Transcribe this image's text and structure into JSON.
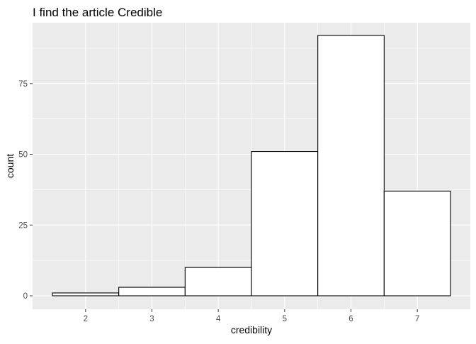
{
  "chart_data": {
    "type": "bar",
    "title": "I find the article Credible",
    "xlabel": "credibility",
    "ylabel": "count",
    "categories": [
      "2",
      "3",
      "4",
      "5",
      "6",
      "7"
    ],
    "x": [
      2,
      3,
      4,
      5,
      6,
      7
    ],
    "values": [
      1,
      3,
      10,
      51,
      92,
      37
    ],
    "xlim": [
      1.5,
      7.5
    ],
    "ylim": [
      0,
      92
    ],
    "yticks": [
      0,
      25,
      50,
      75
    ],
    "ytick_labels": [
      "0",
      "25",
      "50",
      "75"
    ],
    "grid": true,
    "legend": "none",
    "colors": {
      "panel": "#ebebeb",
      "grid_major": "#ffffff",
      "bar_fill": "#ffffff",
      "bar_stroke": "#000000",
      "tick_text": "#4d4d4d",
      "title_text": "#000000"
    }
  }
}
